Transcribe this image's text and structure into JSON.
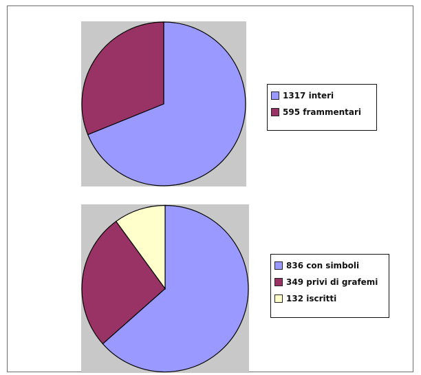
{
  "chart_data": [
    {
      "type": "pie",
      "title": "",
      "slices": [
        {
          "label": "1317 interi",
          "value": 1317,
          "color": "#9999ff"
        },
        {
          "label": "595 frammentari",
          "value": 595,
          "color": "#993366"
        }
      ],
      "start_angle_deg": 0,
      "direction": "clockwise",
      "legend_position": "right",
      "plot_background": "#c8c8c8"
    },
    {
      "type": "pie",
      "title": "",
      "slices": [
        {
          "label": "836 con simboli",
          "value": 836,
          "color": "#9999ff"
        },
        {
          "label": "349 privi di grafemi",
          "value": 349,
          "color": "#993366"
        },
        {
          "label": "132 iscritti",
          "value": 132,
          "color": "#ffffcc"
        }
      ],
      "start_angle_deg": 0,
      "direction": "clockwise",
      "legend_position": "right",
      "plot_background": "#c8c8c8"
    }
  ]
}
